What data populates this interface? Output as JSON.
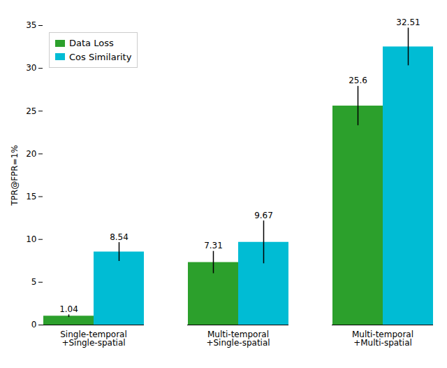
{
  "chart_data": {
    "type": "bar",
    "categories": [
      "Single-temporal\n+Single-spatial",
      "Multi-temporal\n+Single-spatial",
      "Multi-temporal\n+Multi-spatial"
    ],
    "series": [
      {
        "name": "Data Loss",
        "color": "#2ca02c",
        "values": [
          1.04,
          7.31,
          25.6
        ],
        "errors": [
          0.15,
          1.3,
          2.3
        ]
      },
      {
        "name": "Cos Similarity",
        "color": "#00bcd4",
        "values": [
          8.54,
          9.67,
          32.51
        ],
        "errors": [
          1.1,
          2.5,
          2.2
        ]
      }
    ],
    "ylabel": "TPR@FPR=1%",
    "ylim": [
      0,
      35
    ],
    "yticks": [
      0,
      5,
      10,
      15,
      20,
      25,
      30,
      35
    ],
    "legend": "upper left",
    "data_labels": true,
    "grid": false
  }
}
